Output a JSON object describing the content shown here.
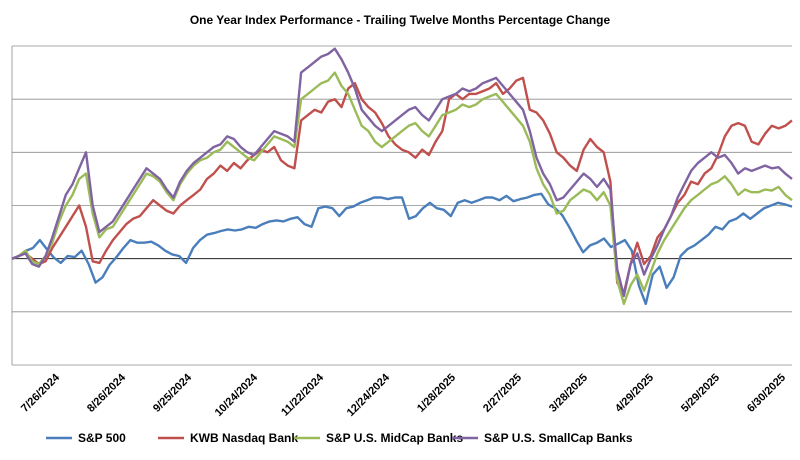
{
  "chart_data": {
    "type": "line",
    "title": "One Year Index Performance - Trailing Twelve Months Percentage Change",
    "x_tick_labels": [
      "7/26/2024",
      "8/26/2024",
      "9/25/2024",
      "10/24/2024",
      "11/22/2024",
      "12/24/2024",
      "1/28/2025",
      "2/27/2025",
      "3/28/2025",
      "4/29/2025",
      "5/29/2025",
      "6/30/2025"
    ],
    "ylim": [
      -20,
      40
    ],
    "grid": "horizontal",
    "legend_position": "bottom",
    "series": [
      {
        "name": "S&P 500",
        "color": "#4a7ebb",
        "values": [
          0,
          0.5,
          1.5,
          2,
          3.5,
          1.8,
          0.2,
          -0.8,
          0.5,
          0.3,
          1.5,
          -1,
          -4.5,
          -3.5,
          -1.2,
          0.3,
          2,
          3.5,
          3,
          3,
          3.2,
          2.5,
          1.5,
          0.8,
          0.5,
          -0.8,
          2,
          3.5,
          4.5,
          4.8,
          5.2,
          5.5,
          5.3,
          5.5,
          6,
          5.8,
          6.5,
          7,
          7.2,
          7,
          7.5,
          7.8,
          6.5,
          6,
          9.5,
          9.8,
          9.5,
          8,
          9.5,
          9.8,
          10.5,
          11,
          11.5,
          11.5,
          11.2,
          11.5,
          11.5,
          7.5,
          8,
          9.5,
          10.5,
          9.5,
          9.2,
          8,
          10.5,
          11,
          10.5,
          11,
          11.5,
          11.5,
          11,
          11.8,
          10.8,
          11.2,
          11.5,
          12,
          12.2,
          10.2,
          9.5,
          8.2,
          6,
          3.5,
          1.2,
          2.5,
          3,
          3.8,
          2.2,
          2.8,
          3.5,
          1.5,
          -5,
          -8.5,
          -3,
          -1.5,
          -5.5,
          -3.5,
          0.5,
          1.8,
          2.5,
          3.5,
          4.5,
          6,
          5.5,
          7,
          7.5,
          8.5,
          7.5,
          8.5,
          9.5,
          10,
          10.5,
          10.2,
          9.8
        ]
      },
      {
        "name": "KWB Nasdaq Bank",
        "color": "#c0504d",
        "values": [
          0,
          0.5,
          1,
          0,
          -1,
          -0.5,
          2,
          4,
          6,
          8,
          10,
          6,
          -0.5,
          -0.8,
          1.5,
          3.5,
          5,
          6.5,
          7.5,
          8,
          9.5,
          11,
          10,
          9,
          8.5,
          10,
          11,
          12,
          13,
          15,
          16,
          17.5,
          16.5,
          18,
          17,
          18.5,
          19.5,
          20.5,
          20,
          21,
          18.5,
          17.5,
          17,
          26,
          27,
          28,
          27.5,
          29.5,
          30,
          28.5,
          32,
          33,
          30,
          28.5,
          27.5,
          25.5,
          23,
          21.5,
          20.5,
          20,
          19,
          20.5,
          19.5,
          22,
          24,
          30,
          31,
          30,
          31,
          31,
          31.5,
          32,
          33,
          31,
          32,
          33.5,
          34,
          28,
          27.5,
          26,
          23.5,
          20,
          19,
          17.5,
          16.5,
          20.5,
          22.5,
          21,
          20,
          14.5,
          -4.5,
          -6.5,
          -1,
          3,
          -1,
          0.5,
          4,
          5.5,
          8,
          10.5,
          12,
          14.5,
          14,
          16,
          17,
          19.5,
          23,
          25,
          25.5,
          25,
          22,
          21.5,
          23.5,
          25,
          24.5,
          25,
          26
        ]
      },
      {
        "name": "S&P U.S. MidCap Banks",
        "color": "#9bbb59",
        "values": [
          0,
          0.5,
          1.5,
          -0.5,
          -1,
          0.5,
          3,
          7,
          10,
          12,
          15,
          16,
          8.5,
          4,
          5.5,
          6,
          8,
          10,
          12,
          14,
          16,
          15.5,
          14.5,
          12.5,
          11,
          14,
          16,
          17.5,
          18.5,
          19,
          20,
          20.5,
          22,
          21,
          20,
          19,
          18.5,
          20,
          21.5,
          23,
          22.5,
          22,
          21,
          30,
          31,
          32,
          33,
          33.5,
          35,
          32.5,
          31,
          28,
          25,
          24,
          22,
          21,
          22,
          23,
          24,
          25,
          25.5,
          24,
          23,
          25,
          27,
          27.5,
          28,
          29,
          28.5,
          29,
          30,
          30.5,
          31,
          29.5,
          28,
          26.5,
          25,
          22,
          17,
          14,
          12,
          8.5,
          9,
          11,
          12,
          13,
          12.5,
          11,
          12.5,
          10,
          -4,
          -8.5,
          -5,
          -3,
          -6,
          -2.5,
          1,
          3.5,
          5.5,
          7.5,
          9.5,
          11,
          12,
          13,
          14,
          14.5,
          15.5,
          14,
          12,
          13,
          12.5,
          12.5,
          13,
          12.8,
          13.5,
          12,
          11
        ]
      },
      {
        "name": "S&P U.S. SmallCap Banks",
        "color": "#8064a2",
        "values": [
          0,
          0.5,
          1,
          -1,
          -1.5,
          0.5,
          4,
          8,
          12,
          14,
          17,
          20,
          10,
          5,
          6,
          7,
          9,
          11,
          13,
          15,
          17,
          16,
          15,
          13,
          11.5,
          14.5,
          16.5,
          18,
          19,
          20,
          21,
          21.5,
          23,
          22.5,
          21,
          20,
          19.5,
          21,
          22.5,
          24,
          23.5,
          23,
          22,
          35,
          36,
          37,
          38,
          38.5,
          39.5,
          37.5,
          35,
          32,
          28,
          26.5,
          25,
          24,
          25,
          26,
          27,
          28,
          28.5,
          27,
          26,
          28,
          30,
          30.5,
          31,
          32,
          31.5,
          32,
          33,
          33.5,
          34,
          32.5,
          31,
          29.5,
          28,
          24,
          19,
          16,
          14,
          11,
          11.5,
          13,
          14.5,
          16,
          15,
          13.5,
          15,
          13,
          -2,
          -7,
          -1,
          1,
          -3,
          0,
          2.5,
          5.5,
          8,
          11.5,
          14,
          16.5,
          18,
          19,
          20,
          19,
          19.5,
          18,
          16,
          17,
          16.5,
          17,
          17.5,
          17,
          17.2,
          16,
          15
        ]
      }
    ]
  }
}
